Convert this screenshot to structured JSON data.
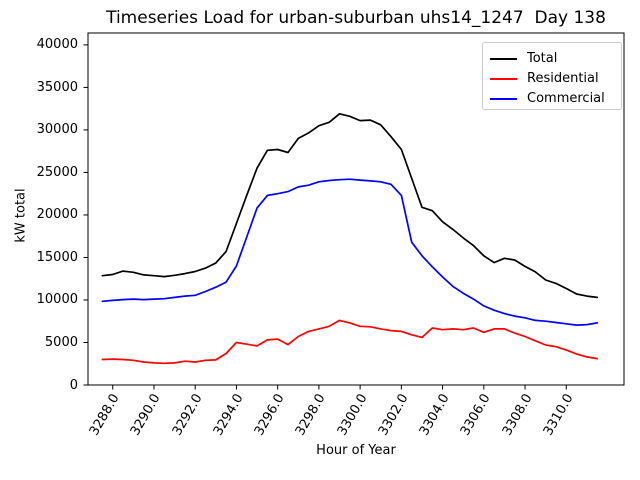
{
  "chart_data": {
    "type": "line",
    "title": "Timeseries Load for urban-suburban uhs14_1247  Day 138",
    "xlabel": "Hour of Year",
    "ylabel": "kW total",
    "grid": false,
    "legend_position": "upper right",
    "xlim": [
      3286.8,
      3312.8
    ],
    "ylim": [
      0,
      41400
    ],
    "xticks": [
      3288,
      3290,
      3292,
      3294,
      3296,
      3298,
      3300,
      3302,
      3304,
      3306,
      3308,
      3310
    ],
    "xtick_labels": [
      "3288.0",
      "3290.0",
      "3292.0",
      "3294.0",
      "3296.0",
      "3298.0",
      "3300.0",
      "3302.0",
      "3304.0",
      "3306.0",
      "3308.0",
      "3310.0"
    ],
    "yticks": [
      0,
      5000,
      10000,
      15000,
      20000,
      25000,
      30000,
      35000,
      40000
    ],
    "ytick_labels": [
      "0",
      "5000",
      "10000",
      "15000",
      "20000",
      "25000",
      "30000",
      "35000",
      "40000"
    ],
    "x": [
      3287.5,
      3288,
      3288.5,
      3289,
      3289.5,
      3290,
      3290.5,
      3291,
      3291.5,
      3292,
      3292.5,
      3293,
      3293.5,
      3294,
      3294.5,
      3295,
      3295.5,
      3296,
      3296.5,
      3297,
      3297.5,
      3298,
      3298.5,
      3299,
      3299.5,
      3300,
      3300.5,
      3301,
      3301.5,
      3302,
      3302.5,
      3303,
      3303.5,
      3304,
      3304.5,
      3305,
      3305.5,
      3306,
      3306.5,
      3307,
      3307.5,
      3308,
      3308.5,
      3309,
      3309.5,
      3310,
      3310.5,
      3311,
      3311.5
    ],
    "series": [
      {
        "name": "Total",
        "color": "#000000",
        "values": [
          12850,
          13000,
          13400,
          13250,
          12950,
          12850,
          12750,
          12900,
          13100,
          13350,
          13750,
          14350,
          15700,
          19000,
          22300,
          25500,
          27600,
          27700,
          27350,
          29000,
          29650,
          30500,
          30900,
          31900,
          31600,
          31100,
          31150,
          30600,
          29200,
          27700,
          24300,
          20900,
          20500,
          19200,
          18300,
          17300,
          16400,
          15200,
          14400,
          14900,
          14700,
          13950,
          13300,
          12350,
          11950,
          11350,
          10700,
          10450,
          10300
        ]
      },
      {
        "name": "Residential",
        "color": "#ff0000",
        "values": [
          3000,
          3050,
          3000,
          2900,
          2700,
          2600,
          2550,
          2600,
          2800,
          2700,
          2900,
          2950,
          3700,
          5000,
          4800,
          4600,
          5300,
          5400,
          4750,
          5700,
          6300,
          6600,
          6900,
          7600,
          7300,
          6900,
          6850,
          6600,
          6400,
          6300,
          5900,
          5600,
          6700,
          6500,
          6600,
          6500,
          6700,
          6200,
          6600,
          6600,
          6100,
          5700,
          5200,
          4700,
          4500,
          4100,
          3650,
          3300,
          3100
        ]
      },
      {
        "name": "Commercial",
        "color": "#0000ff",
        "values": [
          9850,
          9950,
          10050,
          10100,
          10050,
          10100,
          10150,
          10300,
          10450,
          10550,
          11000,
          11500,
          12100,
          14000,
          17400,
          20800,
          22300,
          22500,
          22750,
          23300,
          23500,
          23900,
          24050,
          24150,
          24200,
          24100,
          24000,
          23900,
          23600,
          22300,
          16800,
          15200,
          13900,
          12700,
          11600,
          10800,
          10100,
          9300,
          8800,
          8400,
          8100,
          7900,
          7600,
          7500,
          7350,
          7200,
          7050,
          7100,
          7300
        ]
      }
    ]
  },
  "legend": {
    "items": [
      {
        "label": "Total",
        "color": "#000000"
      },
      {
        "label": "Residential",
        "color": "#ff0000"
      },
      {
        "label": "Commercial",
        "color": "#0000ff"
      }
    ]
  }
}
